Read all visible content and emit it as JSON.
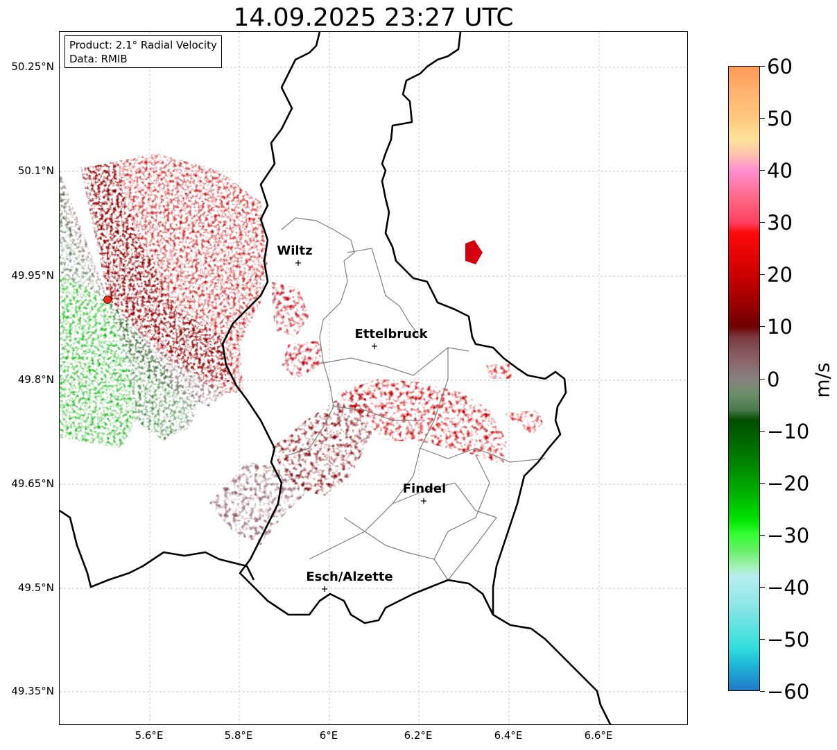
{
  "title": "14.09.2025 23:27 UTC",
  "info_box": {
    "line1": "Product: 2.1° Radial Velocity",
    "line2": "Data: RMIB"
  },
  "latitude_labels": [
    "50.25°N",
    "50.1°N",
    "49.95°N",
    "49.8°N",
    "49.65°N",
    "49.5°N",
    "49.35°N"
  ],
  "longitude_labels": [
    "5.6°E",
    "5.8°E",
    "6°E",
    "6.2°E",
    "6.4°E",
    "6.6°E"
  ],
  "cities": [
    {
      "name": "Wiltz",
      "lon": 5.93,
      "lat": 49.967
    },
    {
      "name": "Ettelbruck",
      "lon": 6.1,
      "lat": 49.848
    },
    {
      "name": "Findel",
      "lon": 6.21,
      "lat": 49.627
    },
    {
      "name": "Esch/Alzette",
      "lon": 5.99,
      "lat": 49.5
    }
  ],
  "radar_site": {
    "lon": 5.505,
    "lat": 49.917,
    "color": "#ff2a1a"
  },
  "colorbar": {
    "unit": "m/s",
    "min": -60,
    "max": 60,
    "tick_labels": [
      "60",
      "50",
      "40",
      "30",
      "20",
      "10",
      "0",
      "−10",
      "−20",
      "−30",
      "−40",
      "−50",
      "−60"
    ],
    "stops": [
      {
        "v": 60,
        "color": "#ff9a55"
      },
      {
        "v": 55,
        "color": "#ffb470"
      },
      {
        "v": 50,
        "color": "#ffc880"
      },
      {
        "v": 46,
        "color": "#ffe39a"
      },
      {
        "v": 43,
        "color": "#ffc0b0"
      },
      {
        "v": 40,
        "color": "#ff8ed0"
      },
      {
        "v": 35,
        "color": "#ff6a8a"
      },
      {
        "v": 30,
        "color": "#ff4060"
      },
      {
        "v": 28,
        "color": "#ff0a0a"
      },
      {
        "v": 20,
        "color": "#cc0000"
      },
      {
        "v": 15,
        "color": "#a00000"
      },
      {
        "v": 10,
        "color": "#700000"
      },
      {
        "v": 8,
        "color": "#7a3a40"
      },
      {
        "v": 4,
        "color": "#8a5f66"
      },
      {
        "v": 0,
        "color": "#888080"
      },
      {
        "v": -3,
        "color": "#6a8e6a"
      },
      {
        "v": -6,
        "color": "#4c7a4c"
      },
      {
        "v": -8,
        "color": "#004d00"
      },
      {
        "v": -15,
        "color": "#007a00"
      },
      {
        "v": -22,
        "color": "#00b000"
      },
      {
        "v": -27,
        "color": "#00e000"
      },
      {
        "v": -30,
        "color": "#33ff33"
      },
      {
        "v": -33,
        "color": "#66f066"
      },
      {
        "v": -36,
        "color": "#a0f0b0"
      },
      {
        "v": -38,
        "color": "#b8eef0"
      },
      {
        "v": -44,
        "color": "#8ae6e6"
      },
      {
        "v": -52,
        "color": "#30dcdc"
      },
      {
        "v": -55,
        "color": "#20b8d8"
      },
      {
        "v": -60,
        "color": "#1f7ac8"
      }
    ]
  },
  "colors": {
    "border_national": "#000000",
    "border_cantonal": "#7f7f7f",
    "grid": "#b0b0b0"
  }
}
